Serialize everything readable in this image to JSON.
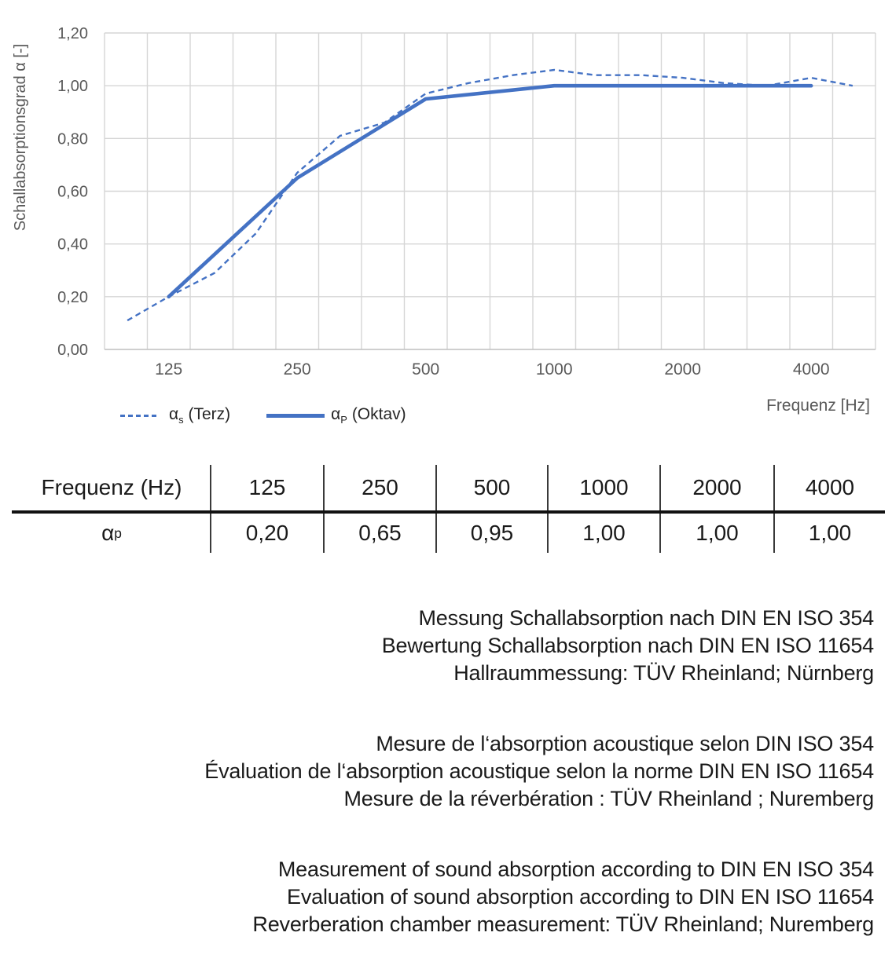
{
  "colors": {
    "line_blue": "#4472C4",
    "grid": "#D6D6D6",
    "axis_line": "#BFBFBF",
    "axis_text": "#595959"
  },
  "chart": {
    "x_axis_title": "Frequenz [Hz]",
    "legend": [
      {
        "alpha": "α",
        "sub": "s",
        "rest": " (Terz)",
        "style": "dashed"
      },
      {
        "alpha": "α",
        "sub": "P",
        "rest": " (Oktav)",
        "style": "solid"
      }
    ]
  },
  "chart_data": {
    "type": "line",
    "title": "",
    "xlabel": "Frequenz [Hz]",
    "ylabel": "Schallabsorptionsgrad α [-]",
    "x_scale": "log",
    "xlim": [
      88.4,
      5657
    ],
    "ylim": [
      0,
      1.2
    ],
    "y_tick_step": 0.2,
    "y_tick_labels": [
      "0,00",
      "0,20",
      "0,40",
      "0,60",
      "0,80",
      "1,00",
      "1,20"
    ],
    "x_ticks": [
      125,
      250,
      500,
      1000,
      2000,
      4000
    ],
    "x_tick_labels": [
      "125",
      "250",
      "500",
      "1000",
      "2000",
      "4000"
    ],
    "minor_gridlines_per_octave": 3,
    "grid": true,
    "legend_position": "bottom-left",
    "line_color": "#4472C4",
    "series": [
      {
        "name": "αs (Terz)",
        "style": "dashed",
        "x": [
          100,
          125,
          160,
          200,
          250,
          315,
          400,
          500,
          630,
          800,
          1000,
          1250,
          1600,
          2000,
          2500,
          3150,
          4000,
          5000
        ],
        "values": [
          0.11,
          0.2,
          0.29,
          0.44,
          0.67,
          0.81,
          0.86,
          0.97,
          1.01,
          1.04,
          1.06,
          1.04,
          1.04,
          1.03,
          1.01,
          1.0,
          1.03,
          1.0
        ]
      },
      {
        "name": "αP (Oktav)",
        "style": "solid",
        "x": [
          125,
          250,
          500,
          1000,
          2000,
          4000
        ],
        "values": [
          0.2,
          0.65,
          0.95,
          1.0,
          1.0,
          1.0
        ]
      }
    ]
  },
  "table": {
    "header": [
      "Frequenz (Hz)",
      "125",
      "250",
      "500",
      "1000",
      "2000",
      "4000"
    ],
    "row_label": {
      "alpha": "α",
      "sub": "p"
    },
    "values": [
      "0,20",
      "0,65",
      "0,95",
      "1,00",
      "1,00",
      "1,00"
    ]
  },
  "notes": {
    "german": [
      "Messung Schallabsorption nach DIN EN ISO 354",
      "Bewertung Schallabsorption nach DIN EN ISO 11654",
      "Hallraummessung: TÜV Rheinland; Nürnberg"
    ],
    "french": [
      "Mesure de l‘absorption acoustique selon DIN ISO 354",
      "Évaluation de l‘absorption acoustique selon la norme DIN EN ISO 11654",
      "Mesure de la réverbération : TÜV Rheinland ; Nuremberg"
    ],
    "english": [
      "Measurement of sound absorption according to DIN EN ISO 354",
      "Evaluation of sound absorption according to DIN EN ISO 11654",
      "Reverberation chamber measurement: TÜV Rheinland; Nuremberg"
    ]
  }
}
